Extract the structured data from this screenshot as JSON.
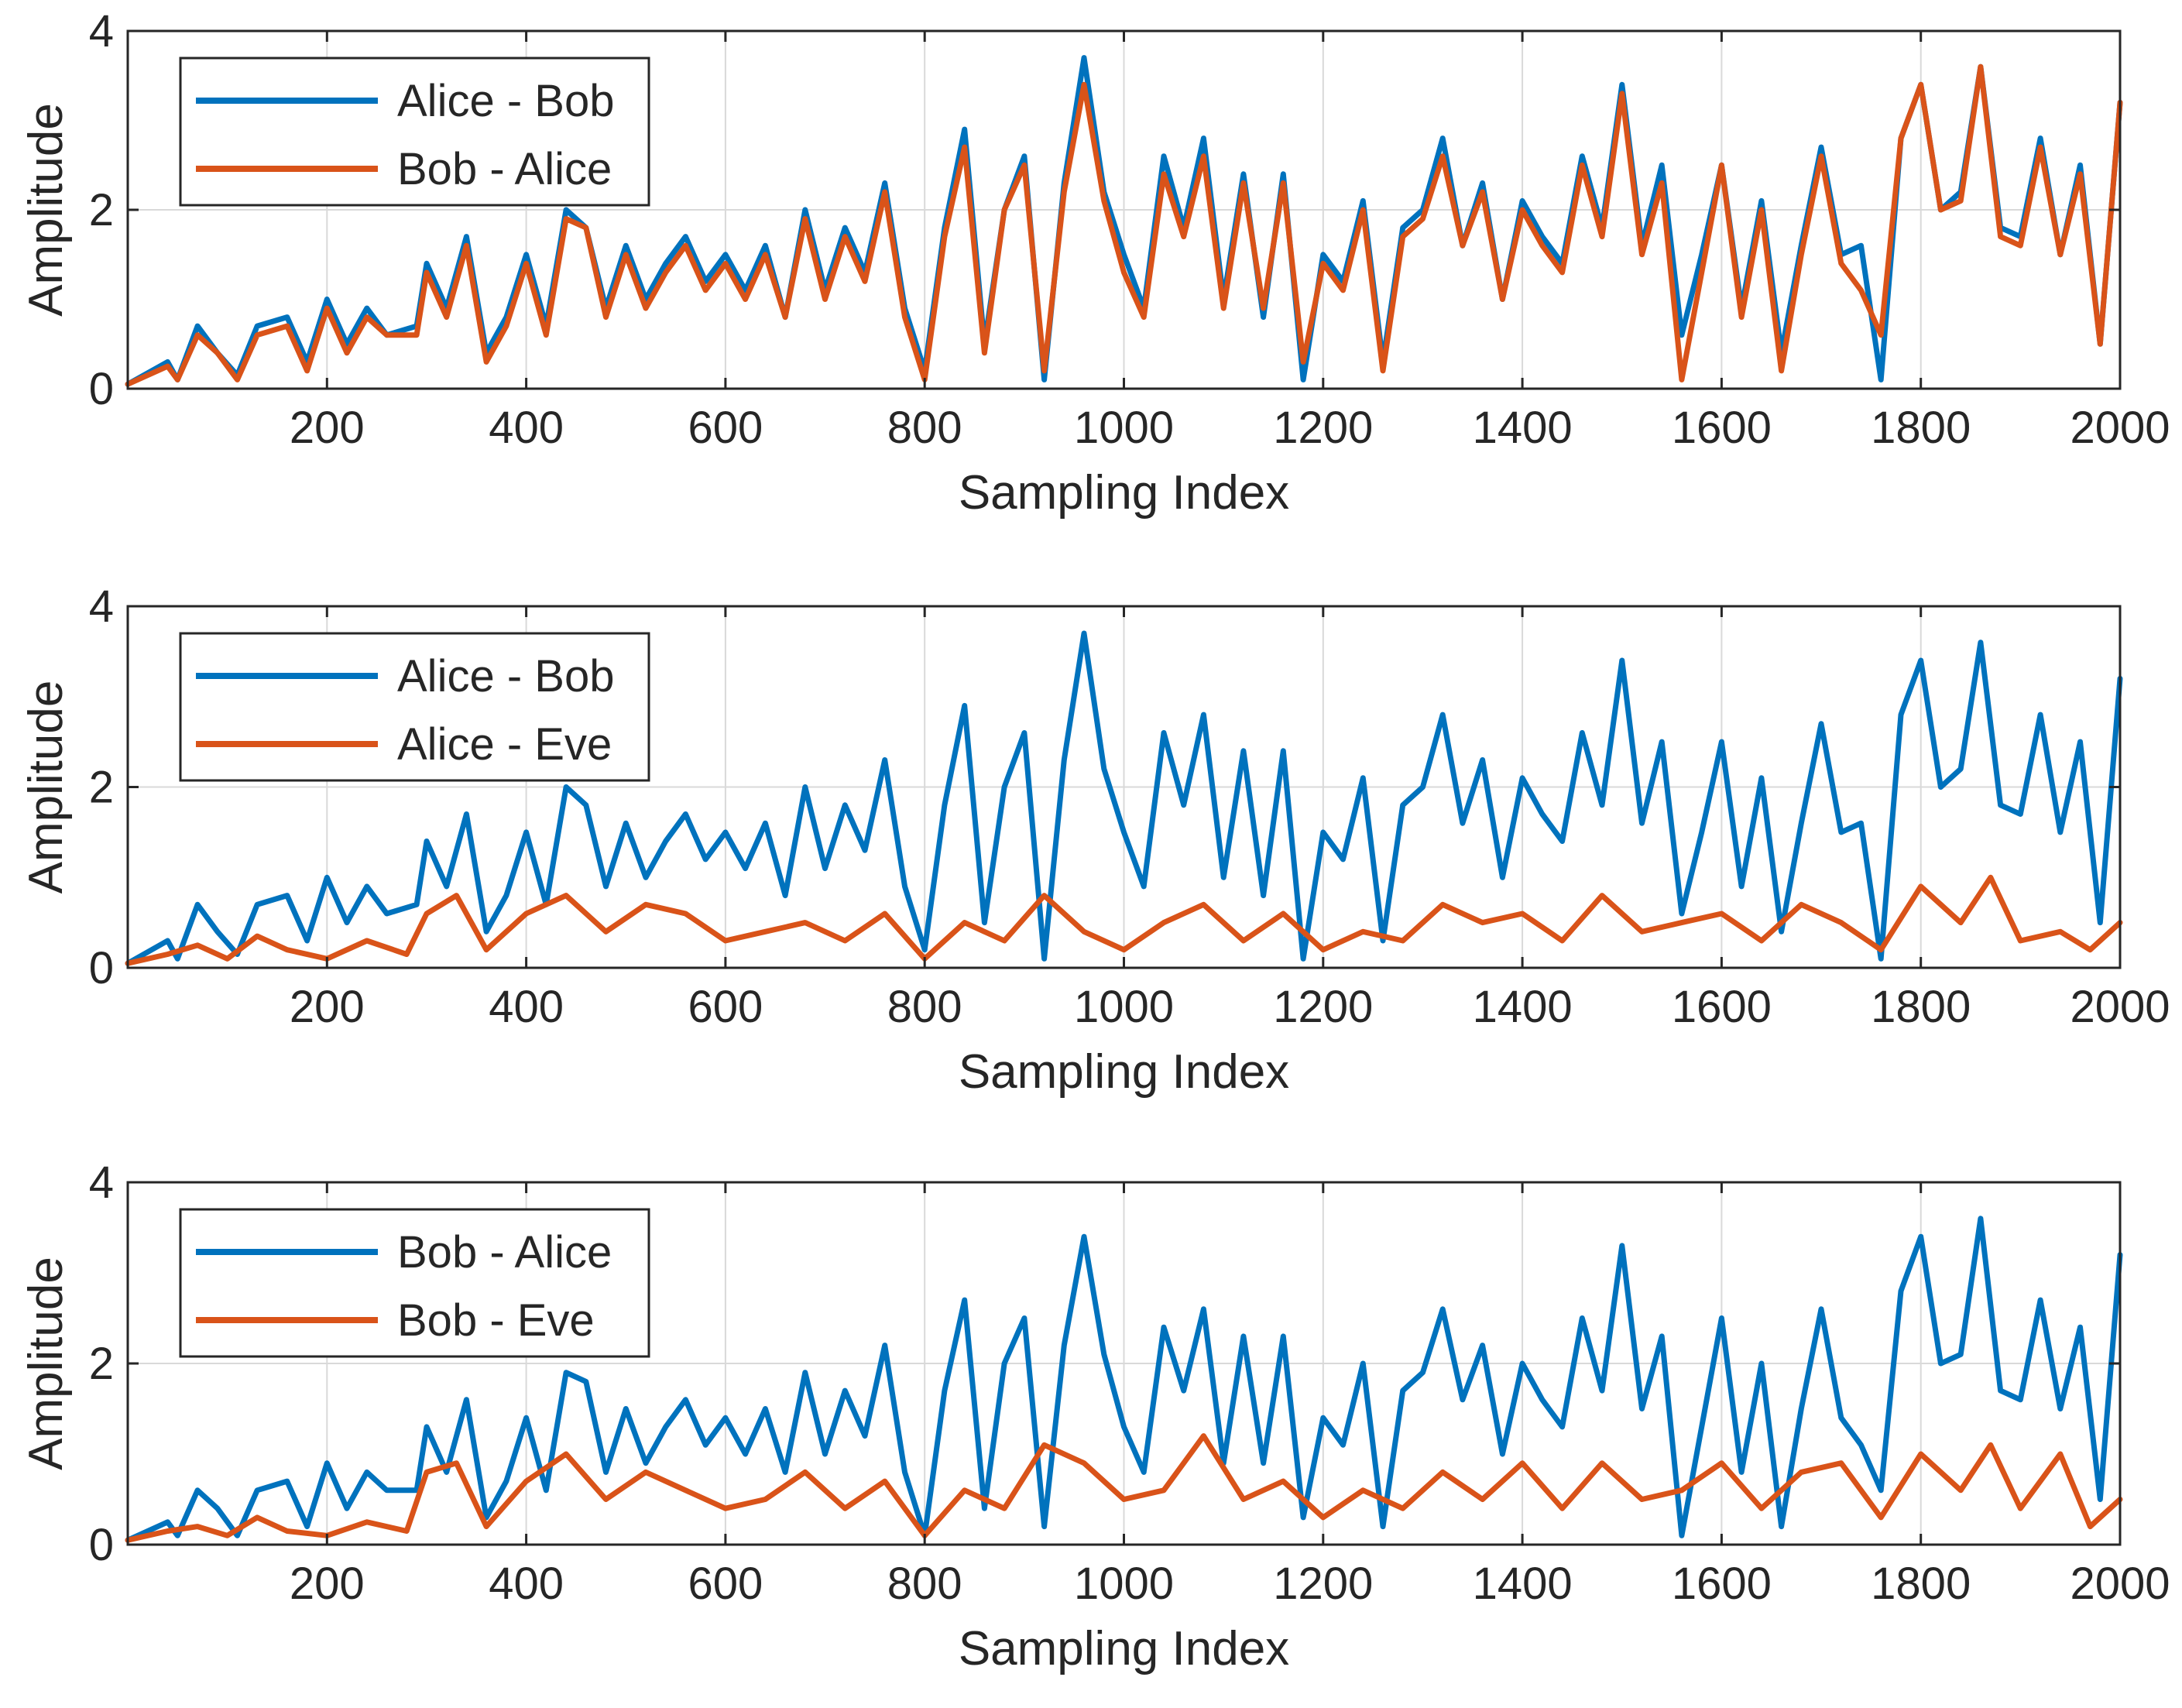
{
  "colors": {
    "series1": "#0072BD",
    "series2": "#D95319",
    "axis": "#262626",
    "grid": "#d9d9d9",
    "background": "#ffffff"
  },
  "chart_data": [
    {
      "type": "line",
      "xlabel": "Sampling Index",
      "ylabel": "Amplitude",
      "xlim": [
        0,
        2000
      ],
      "ylim": [
        0,
        4
      ],
      "xticks": [
        200,
        400,
        600,
        800,
        1000,
        1200,
        1400,
        1600,
        1800,
        2000
      ],
      "yticks": [
        0,
        2,
        4
      ],
      "grid": true,
      "legend_location": "top-left",
      "series": [
        {
          "name": "Alice - Bob",
          "x": [
            0,
            40,
            50,
            70,
            90,
            110,
            130,
            160,
            180,
            200,
            220,
            240,
            260,
            290,
            300,
            320,
            340,
            360,
            380,
            400,
            420,
            440,
            460,
            480,
            500,
            520,
            540,
            560,
            580,
            600,
            620,
            640,
            660,
            680,
            700,
            720,
            740,
            760,
            780,
            800,
            820,
            840,
            860,
            880,
            900,
            920,
            940,
            960,
            980,
            1000,
            1020,
            1040,
            1060,
            1080,
            1100,
            1120,
            1140,
            1160,
            1180,
            1200,
            1220,
            1240,
            1260,
            1280,
            1300,
            1320,
            1340,
            1360,
            1380,
            1400,
            1420,
            1440,
            1460,
            1480,
            1500,
            1520,
            1540,
            1560,
            1580,
            1600,
            1620,
            1640,
            1660,
            1680,
            1700,
            1720,
            1740,
            1760,
            1780,
            1800,
            1820,
            1840,
            1860,
            1880,
            1900,
            1920,
            1940,
            1960,
            1980,
            2000
          ],
          "values": [
            0.05,
            0.3,
            0.1,
            0.7,
            0.4,
            0.15,
            0.7,
            0.8,
            0.3,
            1.0,
            0.5,
            0.9,
            0.6,
            0.7,
            1.4,
            0.9,
            1.7,
            0.4,
            0.8,
            1.5,
            0.7,
            2.0,
            1.8,
            0.9,
            1.6,
            1.0,
            1.4,
            1.7,
            1.2,
            1.5,
            1.1,
            1.6,
            0.8,
            2.0,
            1.1,
            1.8,
            1.3,
            2.3,
            0.9,
            0.2,
            1.8,
            2.9,
            0.5,
            2.0,
            2.6,
            0.1,
            2.3,
            3.7,
            2.2,
            1.5,
            0.9,
            2.6,
            1.8,
            2.8,
            1.0,
            2.4,
            0.8,
            2.4,
            0.1,
            1.5,
            1.2,
            2.1,
            0.3,
            1.8,
            2.0,
            2.8,
            1.6,
            2.3,
            1.0,
            2.1,
            1.7,
            1.4,
            2.6,
            1.8,
            3.4,
            1.6,
            2.5,
            0.6,
            1.5,
            2.5,
            0.9,
            2.1,
            0.4,
            1.6,
            2.7,
            1.5,
            1.6,
            0.1,
            2.8,
            3.4,
            2.0,
            2.2,
            3.6,
            1.8,
            1.7,
            2.8,
            1.5,
            2.5,
            0.5,
            3.2
          ]
        },
        {
          "name": "Bob - Alice",
          "x": [
            0,
            40,
            50,
            70,
            90,
            110,
            130,
            160,
            180,
            200,
            220,
            240,
            260,
            290,
            300,
            320,
            340,
            360,
            380,
            400,
            420,
            440,
            460,
            480,
            500,
            520,
            540,
            560,
            580,
            600,
            620,
            640,
            660,
            680,
            700,
            720,
            740,
            760,
            780,
            800,
            820,
            840,
            860,
            880,
            900,
            920,
            940,
            960,
            980,
            1000,
            1020,
            1040,
            1060,
            1080,
            1100,
            1120,
            1140,
            1160,
            1180,
            1200,
            1220,
            1240,
            1260,
            1280,
            1300,
            1320,
            1340,
            1360,
            1380,
            1400,
            1420,
            1440,
            1460,
            1480,
            1500,
            1520,
            1540,
            1560,
            1580,
            1600,
            1620,
            1640,
            1660,
            1680,
            1700,
            1720,
            1740,
            1760,
            1780,
            1800,
            1820,
            1840,
            1860,
            1880,
            1900,
            1920,
            1940,
            1960,
            1980,
            2000
          ],
          "values": [
            0.05,
            0.25,
            0.1,
            0.6,
            0.4,
            0.1,
            0.6,
            0.7,
            0.2,
            0.9,
            0.4,
            0.8,
            0.6,
            0.6,
            1.3,
            0.8,
            1.6,
            0.3,
            0.7,
            1.4,
            0.6,
            1.9,
            1.8,
            0.8,
            1.5,
            0.9,
            1.3,
            1.6,
            1.1,
            1.4,
            1.0,
            1.5,
            0.8,
            1.9,
            1.0,
            1.7,
            1.2,
            2.2,
            0.8,
            0.1,
            1.7,
            2.7,
            0.4,
            2.0,
            2.5,
            0.2,
            2.2,
            3.4,
            2.1,
            1.3,
            0.8,
            2.4,
            1.7,
            2.6,
            0.9,
            2.3,
            0.9,
            2.3,
            0.3,
            1.4,
            1.1,
            2.0,
            0.2,
            1.7,
            1.9,
            2.6,
            1.6,
            2.2,
            1.0,
            2.0,
            1.6,
            1.3,
            2.5,
            1.7,
            3.3,
            1.5,
            2.3,
            0.1,
            1.3,
            2.5,
            0.8,
            2.0,
            0.2,
            1.5,
            2.6,
            1.4,
            1.1,
            0.6,
            2.8,
            3.4,
            2.0,
            2.1,
            3.6,
            1.7,
            1.6,
            2.7,
            1.5,
            2.4,
            0.5,
            3.2
          ]
        }
      ]
    },
    {
      "type": "line",
      "xlabel": "Sampling Index",
      "ylabel": "Amplitude",
      "xlim": [
        0,
        2000
      ],
      "ylim": [
        0,
        4
      ],
      "xticks": [
        200,
        400,
        600,
        800,
        1000,
        1200,
        1400,
        1600,
        1800,
        2000
      ],
      "yticks": [
        0,
        2,
        4
      ],
      "grid": true,
      "legend_location": "top-left",
      "series": [
        {
          "name": "Alice - Bob",
          "x": [
            0,
            40,
            50,
            70,
            90,
            110,
            130,
            160,
            180,
            200,
            220,
            240,
            260,
            290,
            300,
            320,
            340,
            360,
            380,
            400,
            420,
            440,
            460,
            480,
            500,
            520,
            540,
            560,
            580,
            600,
            620,
            640,
            660,
            680,
            700,
            720,
            740,
            760,
            780,
            800,
            820,
            840,
            860,
            880,
            900,
            920,
            940,
            960,
            980,
            1000,
            1020,
            1040,
            1060,
            1080,
            1100,
            1120,
            1140,
            1160,
            1180,
            1200,
            1220,
            1240,
            1260,
            1280,
            1300,
            1320,
            1340,
            1360,
            1380,
            1400,
            1420,
            1440,
            1460,
            1480,
            1500,
            1520,
            1540,
            1560,
            1580,
            1600,
            1620,
            1640,
            1660,
            1680,
            1700,
            1720,
            1740,
            1760,
            1780,
            1800,
            1820,
            1840,
            1860,
            1880,
            1900,
            1920,
            1940,
            1960,
            1980,
            2000
          ],
          "values": [
            0.05,
            0.3,
            0.1,
            0.7,
            0.4,
            0.15,
            0.7,
            0.8,
            0.3,
            1.0,
            0.5,
            0.9,
            0.6,
            0.7,
            1.4,
            0.9,
            1.7,
            0.4,
            0.8,
            1.5,
            0.7,
            2.0,
            1.8,
            0.9,
            1.6,
            1.0,
            1.4,
            1.7,
            1.2,
            1.5,
            1.1,
            1.6,
            0.8,
            2.0,
            1.1,
            1.8,
            1.3,
            2.3,
            0.9,
            0.2,
            1.8,
            2.9,
            0.5,
            2.0,
            2.6,
            0.1,
            2.3,
            3.7,
            2.2,
            1.5,
            0.9,
            2.6,
            1.8,
            2.8,
            1.0,
            2.4,
            0.8,
            2.4,
            0.1,
            1.5,
            1.2,
            2.1,
            0.3,
            1.8,
            2.0,
            2.8,
            1.6,
            2.3,
            1.0,
            2.1,
            1.7,
            1.4,
            2.6,
            1.8,
            3.4,
            1.6,
            2.5,
            0.6,
            1.5,
            2.5,
            0.9,
            2.1,
            0.4,
            1.6,
            2.7,
            1.5,
            1.6,
            0.1,
            2.8,
            3.4,
            2.0,
            2.2,
            3.6,
            1.8,
            1.7,
            2.8,
            1.5,
            2.5,
            0.5,
            3.2
          ]
        },
        {
          "name": "Alice - Eve",
          "x": [
            0,
            40,
            70,
            100,
            130,
            160,
            200,
            240,
            280,
            300,
            330,
            360,
            400,
            440,
            480,
            520,
            560,
            600,
            640,
            680,
            720,
            760,
            800,
            840,
            880,
            920,
            960,
            1000,
            1040,
            1080,
            1120,
            1160,
            1200,
            1240,
            1280,
            1320,
            1360,
            1400,
            1440,
            1480,
            1520,
            1560,
            1600,
            1640,
            1680,
            1720,
            1760,
            1800,
            1840,
            1870,
            1900,
            1940,
            1970,
            2000
          ],
          "values": [
            0.05,
            0.15,
            0.25,
            0.1,
            0.35,
            0.2,
            0.1,
            0.3,
            0.15,
            0.6,
            0.8,
            0.2,
            0.6,
            0.8,
            0.4,
            0.7,
            0.6,
            0.3,
            0.4,
            0.5,
            0.3,
            0.6,
            0.1,
            0.5,
            0.3,
            0.8,
            0.4,
            0.2,
            0.5,
            0.7,
            0.3,
            0.6,
            0.2,
            0.4,
            0.3,
            0.7,
            0.5,
            0.6,
            0.3,
            0.8,
            0.4,
            0.5,
            0.6,
            0.3,
            0.7,
            0.5,
            0.2,
            0.9,
            0.5,
            1.0,
            0.3,
            0.4,
            0.2,
            0.5
          ]
        }
      ]
    },
    {
      "type": "line",
      "xlabel": "Sampling Index",
      "ylabel": "Amplitude",
      "xlim": [
        0,
        2000
      ],
      "ylim": [
        0,
        4
      ],
      "xticks": [
        200,
        400,
        600,
        800,
        1000,
        1200,
        1400,
        1600,
        1800,
        2000
      ],
      "yticks": [
        0,
        2,
        4
      ],
      "grid": true,
      "legend_location": "top-left",
      "series": [
        {
          "name": "Bob - Alice",
          "x": [
            0,
            40,
            50,
            70,
            90,
            110,
            130,
            160,
            180,
            200,
            220,
            240,
            260,
            290,
            300,
            320,
            340,
            360,
            380,
            400,
            420,
            440,
            460,
            480,
            500,
            520,
            540,
            560,
            580,
            600,
            620,
            640,
            660,
            680,
            700,
            720,
            740,
            760,
            780,
            800,
            820,
            840,
            860,
            880,
            900,
            920,
            940,
            960,
            980,
            1000,
            1020,
            1040,
            1060,
            1080,
            1100,
            1120,
            1140,
            1160,
            1180,
            1200,
            1220,
            1240,
            1260,
            1280,
            1300,
            1320,
            1340,
            1360,
            1380,
            1400,
            1420,
            1440,
            1460,
            1480,
            1500,
            1520,
            1540,
            1560,
            1580,
            1600,
            1620,
            1640,
            1660,
            1680,
            1700,
            1720,
            1740,
            1760,
            1780,
            1800,
            1820,
            1840,
            1860,
            1880,
            1900,
            1920,
            1940,
            1960,
            1980,
            2000
          ],
          "values": [
            0.05,
            0.25,
            0.1,
            0.6,
            0.4,
            0.1,
            0.6,
            0.7,
            0.2,
            0.9,
            0.4,
            0.8,
            0.6,
            0.6,
            1.3,
            0.8,
            1.6,
            0.3,
            0.7,
            1.4,
            0.6,
            1.9,
            1.8,
            0.8,
            1.5,
            0.9,
            1.3,
            1.6,
            1.1,
            1.4,
            1.0,
            1.5,
            0.8,
            1.9,
            1.0,
            1.7,
            1.2,
            2.2,
            0.8,
            0.1,
            1.7,
            2.7,
            0.4,
            2.0,
            2.5,
            0.2,
            2.2,
            3.4,
            2.1,
            1.3,
            0.8,
            2.4,
            1.7,
            2.6,
            0.9,
            2.3,
            0.9,
            2.3,
            0.3,
            1.4,
            1.1,
            2.0,
            0.2,
            1.7,
            1.9,
            2.6,
            1.6,
            2.2,
            1.0,
            2.0,
            1.6,
            1.3,
            2.5,
            1.7,
            3.3,
            1.5,
            2.3,
            0.1,
            1.3,
            2.5,
            0.8,
            2.0,
            0.2,
            1.5,
            2.6,
            1.4,
            1.1,
            0.6,
            2.8,
            3.4,
            2.0,
            2.1,
            3.6,
            1.7,
            1.6,
            2.7,
            1.5,
            2.4,
            0.5,
            3.2
          ]
        },
        {
          "name": "Bob - Eve",
          "x": [
            0,
            40,
            70,
            100,
            130,
            160,
            200,
            240,
            280,
            300,
            330,
            360,
            400,
            440,
            480,
            520,
            560,
            600,
            640,
            680,
            720,
            760,
            800,
            840,
            880,
            920,
            960,
            1000,
            1040,
            1080,
            1120,
            1160,
            1200,
            1240,
            1280,
            1320,
            1360,
            1400,
            1440,
            1480,
            1520,
            1560,
            1600,
            1640,
            1680,
            1720,
            1760,
            1800,
            1840,
            1870,
            1900,
            1940,
            1970,
            2000
          ],
          "values": [
            0.05,
            0.15,
            0.2,
            0.1,
            0.3,
            0.15,
            0.1,
            0.25,
            0.15,
            0.8,
            0.9,
            0.2,
            0.7,
            1.0,
            0.5,
            0.8,
            0.6,
            0.4,
            0.5,
            0.8,
            0.4,
            0.7,
            0.1,
            0.6,
            0.4,
            1.1,
            0.9,
            0.5,
            0.6,
            1.2,
            0.5,
            0.7,
            0.3,
            0.6,
            0.4,
            0.8,
            0.5,
            0.9,
            0.4,
            0.9,
            0.5,
            0.6,
            0.9,
            0.4,
            0.8,
            0.9,
            0.3,
            1.0,
            0.6,
            1.1,
            0.4,
            1.0,
            0.2,
            0.5
          ]
        }
      ]
    }
  ]
}
